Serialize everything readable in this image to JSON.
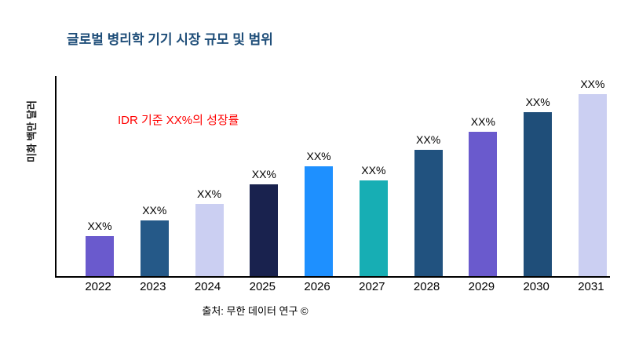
{
  "colors": {
    "title": "#1F4E79",
    "annotation": "#FF0000",
    "axis": "#000000",
    "background": "#FFFFFF"
  },
  "chart_data": {
    "type": "bar",
    "title": "글로벌 병리학 기기 시장 규모 및 범위",
    "xlabel": "",
    "ylabel": "미화 백만 달러",
    "ylim": [
      0,
      100
    ],
    "grid": false,
    "legend": false,
    "categories": [
      "2022",
      "2023",
      "2024",
      "2025",
      "2026",
      "2027",
      "2028",
      "2029",
      "2030",
      "2031"
    ],
    "values": [
      20,
      28,
      36,
      46,
      55,
      48,
      63,
      72,
      82,
      91
    ],
    "bar_labels": [
      "XX%",
      "XX%",
      "XX%",
      "XX%",
      "XX%",
      "XX%",
      "XX%",
      "XX%",
      "XX%",
      "XX%"
    ],
    "bar_colors": [
      "#6A5ACD",
      "#255988",
      "#CBCFF2",
      "#19224E",
      "#1E90FF",
      "#17AEB4",
      "#21527F",
      "#6A5ACD",
      "#1F4E79",
      "#CBCFF2"
    ],
    "annotations": [
      "IDR 기준 XX%의 성장률"
    ],
    "source": "출처: 무한 데이터 연구 ©"
  }
}
